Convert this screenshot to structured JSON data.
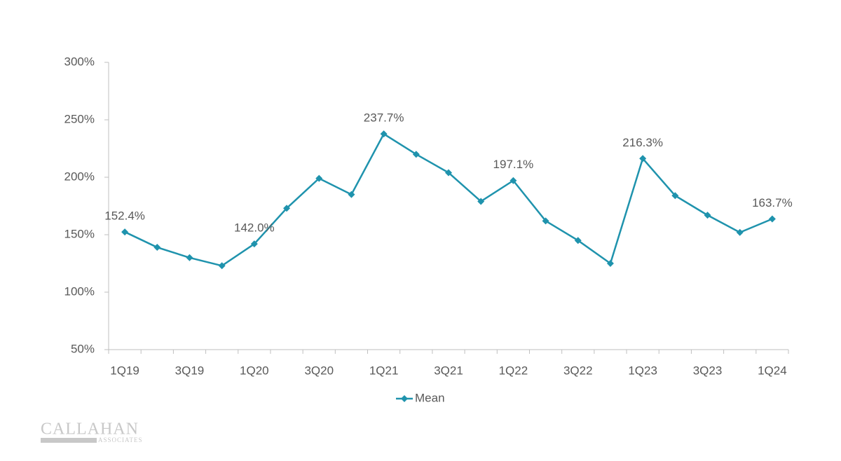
{
  "chart_data": {
    "type": "line",
    "categories": [
      "1Q19",
      null,
      "3Q19",
      null,
      "1Q20",
      null,
      "3Q20",
      null,
      "1Q21",
      null,
      "3Q21",
      null,
      "1Q22",
      null,
      "3Q22",
      null,
      "1Q23",
      null,
      "3Q23",
      null,
      "1Q24"
    ],
    "series": [
      {
        "name": "Mean",
        "color": "#1f93ad",
        "values": [
          152.4,
          139,
          130,
          123,
          142.0,
          173,
          199,
          185,
          237.7,
          220,
          204,
          179,
          197.1,
          162,
          145,
          125,
          216.3,
          184,
          167,
          152,
          163.7
        ],
        "value_labels": [
          "152.4%",
          null,
          null,
          null,
          "142.0%",
          null,
          null,
          null,
          "237.7%",
          null,
          null,
          null,
          "197.1%",
          null,
          null,
          null,
          "216.3%",
          null,
          null,
          null,
          "163.7%"
        ]
      }
    ],
    "ylim": [
      50,
      300
    ],
    "yticks": [
      {
        "value": 50,
        "label": "50%"
      },
      {
        "value": 100,
        "label": "100%"
      },
      {
        "value": 150,
        "label": "150%"
      },
      {
        "value": 200,
        "label": "200%"
      },
      {
        "value": 250,
        "label": "250%"
      },
      {
        "value": 300,
        "label": "300%"
      }
    ],
    "grid": false,
    "legend": "bottom"
  },
  "logo": {
    "name": "CALLAHAN",
    "sub": "ASSOCIATES"
  }
}
